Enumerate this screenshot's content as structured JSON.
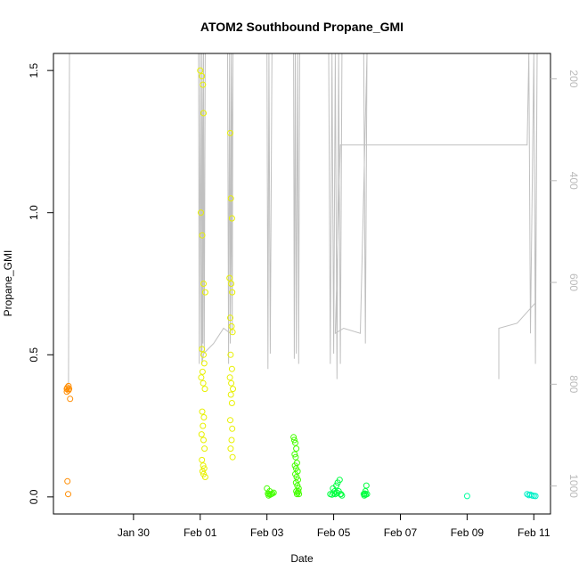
{
  "chart_data": {
    "type": "scatter",
    "title": "ATOM2 Southbound Propane_GMI",
    "xlabel": "Date",
    "ylabel": "Propane_GMI",
    "x_ticks": [
      "Jan 30",
      "Feb 01",
      "Feb 03",
      "Feb 05",
      "Feb 07",
      "Feb 09",
      "Feb 11"
    ],
    "x_tick_days": [
      2,
      4,
      6,
      8,
      10,
      12,
      14
    ],
    "xlim_days": [
      -0.4,
      14.5
    ],
    "y_ticks": [
      "0.0",
      "0.5",
      "1.0",
      "1.5"
    ],
    "y_tick_values": [
      0,
      0.5,
      1.0,
      1.5
    ],
    "ylim": [
      -0.06,
      1.56
    ],
    "y2_ticks": [
      "200",
      "400",
      "600",
      "800",
      "1000"
    ],
    "y2_tick_values": [
      200,
      400,
      600,
      800,
      1000
    ],
    "y2lim": [
      1055,
      150
    ],
    "grid": false,
    "legend": "none",
    "marker": "open-circle",
    "point_series": [
      {
        "color": "#ff8c00",
        "x": [
          0.0,
          0.0,
          0.02,
          0.05,
          0.05,
          0.07,
          0.1,
          0.02,
          0.04
        ],
        "y": [
          0.37,
          0.38,
          0.385,
          0.375,
          0.39,
          0.38,
          0.345,
          0.055,
          0.01
        ]
      },
      {
        "color": "#e8f000",
        "x": [
          4.0,
          4.05,
          4.08,
          4.1,
          4.02,
          4.06,
          4.1,
          4.15,
          4.05,
          4.1,
          4.12,
          4.07,
          4.03,
          4.09,
          4.14,
          4.06,
          4.11,
          4.08,
          4.04,
          4.1,
          4.13,
          4.05,
          4.09,
          4.12,
          4.07,
          4.1,
          4.15
        ],
        "y": [
          1.5,
          1.48,
          1.45,
          1.35,
          1.0,
          0.92,
          0.75,
          0.72,
          0.52,
          0.5,
          0.47,
          0.44,
          0.42,
          0.4,
          0.38,
          0.3,
          0.28,
          0.25,
          0.22,
          0.2,
          0.17,
          0.13,
          0.11,
          0.1,
          0.09,
          0.08,
          0.07
        ]
      },
      {
        "color": "#e8f000",
        "x": [
          4.9,
          4.92,
          4.95,
          4.88,
          4.93,
          4.96,
          4.9,
          4.94,
          4.97,
          4.91,
          4.95,
          4.89,
          4.93,
          4.98,
          4.92,
          4.95,
          4.9,
          4.96,
          4.94,
          4.91,
          4.97
        ],
        "y": [
          1.28,
          1.05,
          0.98,
          0.77,
          0.75,
          0.72,
          0.63,
          0.6,
          0.58,
          0.5,
          0.45,
          0.42,
          0.4,
          0.38,
          0.36,
          0.33,
          0.27,
          0.24,
          0.2,
          0.17,
          0.14
        ]
      },
      {
        "color": "#44ff00",
        "x": [
          6.0,
          6.03,
          6.06,
          6.1,
          6.13,
          6.16,
          6.2,
          6.05,
          6.08
        ],
        "y": [
          0.03,
          0.012,
          0.01,
          0.008,
          0.01,
          0.012,
          0.015,
          0.005,
          0.02
        ]
      },
      {
        "color": "#44ff00",
        "x": [
          6.8,
          6.82,
          6.85,
          6.88,
          6.83,
          6.86,
          6.9,
          6.84,
          6.87,
          6.92,
          6.85,
          6.89,
          6.93,
          6.87,
          6.91,
          6.95,
          6.88,
          6.92,
          6.96,
          6.9,
          6.94
        ],
        "y": [
          0.21,
          0.2,
          0.19,
          0.17,
          0.15,
          0.14,
          0.12,
          0.11,
          0.1,
          0.09,
          0.08,
          0.07,
          0.06,
          0.05,
          0.04,
          0.03,
          0.02,
          0.015,
          0.01,
          0.01,
          0.02
        ]
      },
      {
        "color": "#00ff40",
        "x": [
          7.9,
          7.95,
          8.0,
          8.05,
          8.1,
          8.15,
          8.2,
          8.25,
          7.98,
          8.08,
          8.18,
          8.12,
          8.03,
          8.22
        ],
        "y": [
          0.01,
          0.008,
          0.012,
          0.01,
          0.015,
          0.02,
          0.01,
          0.005,
          0.03,
          0.04,
          0.06,
          0.05,
          0.02,
          0.01
        ]
      },
      {
        "color": "#00ff40",
        "x": [
          8.9,
          8.93,
          8.96,
          9.0,
          8.95,
          8.98,
          8.92
        ],
        "y": [
          0.01,
          0.012,
          0.008,
          0.01,
          0.02,
          0.04,
          0.005
        ]
      },
      {
        "color": "#00ffa0",
        "x": [
          12.0
        ],
        "y": [
          0.003
        ]
      },
      {
        "color": "#00f0c8",
        "x": [
          13.8,
          13.85,
          13.9,
          13.95,
          14.0,
          14.05
        ],
        "y": [
          0.01,
          0.006,
          0.008,
          0.005,
          0.004,
          0.003
        ]
      }
    ],
    "pressure_trace": {
      "color": "#c0c0c0",
      "x": [
        0.05,
        0.08,
        0.1,
        0.1,
        1.5,
        3.95,
        3.97,
        4.0,
        4.03,
        4.05,
        4.08,
        4.1,
        4.12,
        4.15,
        4.5,
        4.82,
        4.85,
        4.88,
        4.9,
        4.93,
        4.96,
        4.98,
        4.9,
        4.7,
        4.4,
        4.1,
        4.05,
        4.1,
        5.2,
        6.0,
        6.03,
        6.06,
        6.1,
        6.15,
        6.2,
        6.3,
        6.8,
        6.82,
        6.85,
        6.88,
        6.92,
        6.95,
        6.98,
        7.0,
        7.5,
        7.85,
        7.9,
        7.95,
        8.0,
        8.05,
        8.1,
        8.15,
        8.2,
        8.25,
        8.3,
        8.9,
        8.95,
        9.0,
        8.8,
        8.3,
        8.05,
        8.2,
        8.2,
        13.8,
        13.85,
        13.9,
        14.0,
        14.05,
        14.1,
        14.05,
        13.5,
        12.95,
        12.95
      ],
      "y": [
        800,
        150,
        150,
        150,
        150,
        150,
        760,
        150,
        740,
        150,
        720,
        150,
        740,
        150,
        150,
        150,
        760,
        150,
        720,
        150,
        700,
        150,
        700,
        690,
        720,
        740,
        760,
        150,
        150,
        150,
        770,
        150,
        740,
        150,
        150,
        150,
        150,
        750,
        150,
        740,
        150,
        760,
        150,
        150,
        150,
        150,
        760,
        150,
        740,
        150,
        790,
        150,
        760,
        150,
        150,
        150,
        720,
        150,
        700,
        690,
        700,
        330,
        330,
        330,
        150,
        700,
        150,
        760,
        150,
        640,
        680,
        690,
        790
      ]
    }
  }
}
